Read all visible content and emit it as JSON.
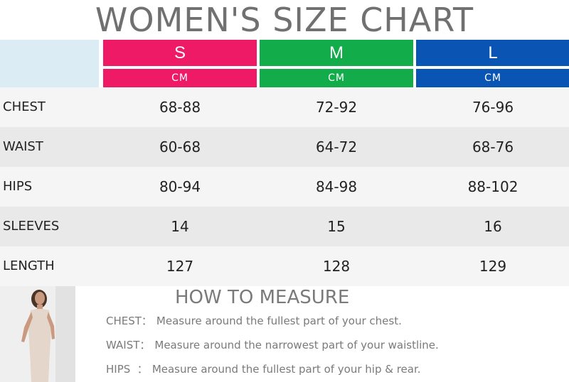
{
  "title": "WOMEN'S SIZE CHART",
  "sizes": [
    {
      "label": "S",
      "unit": "CM",
      "color": "#ee1a66"
    },
    {
      "label": "M",
      "unit": "CM",
      "color": "#12ad4a"
    },
    {
      "label": "L",
      "unit": "CM",
      "color": "#0a55b4"
    }
  ],
  "rows": [
    {
      "label": "CHEST",
      "values": [
        "68-88",
        "72-92",
        "76-96"
      ]
    },
    {
      "label": "WAIST",
      "values": [
        "60-68",
        "64-72",
        "68-76"
      ]
    },
    {
      "label": "HIPS",
      "values": [
        "80-94",
        "84-98",
        "88-102"
      ]
    },
    {
      "label": "SLEEVES",
      "values": [
        "14",
        "15",
        "16"
      ]
    },
    {
      "label": "LENGTH",
      "values": [
        "127",
        "128",
        "129"
      ]
    }
  ],
  "how_to_measure": {
    "title": "HOW TO MEASURE",
    "items": [
      {
        "key": "CHEST：",
        "text": "Measure around the fullest part of your chest."
      },
      {
        "key": "WAIST：",
        "text": "Measure around the narrowest part of your waistline."
      },
      {
        "key": "HIPS  ：",
        "text": "Measure around the fullest part of your hip & rear."
      }
    ]
  }
}
